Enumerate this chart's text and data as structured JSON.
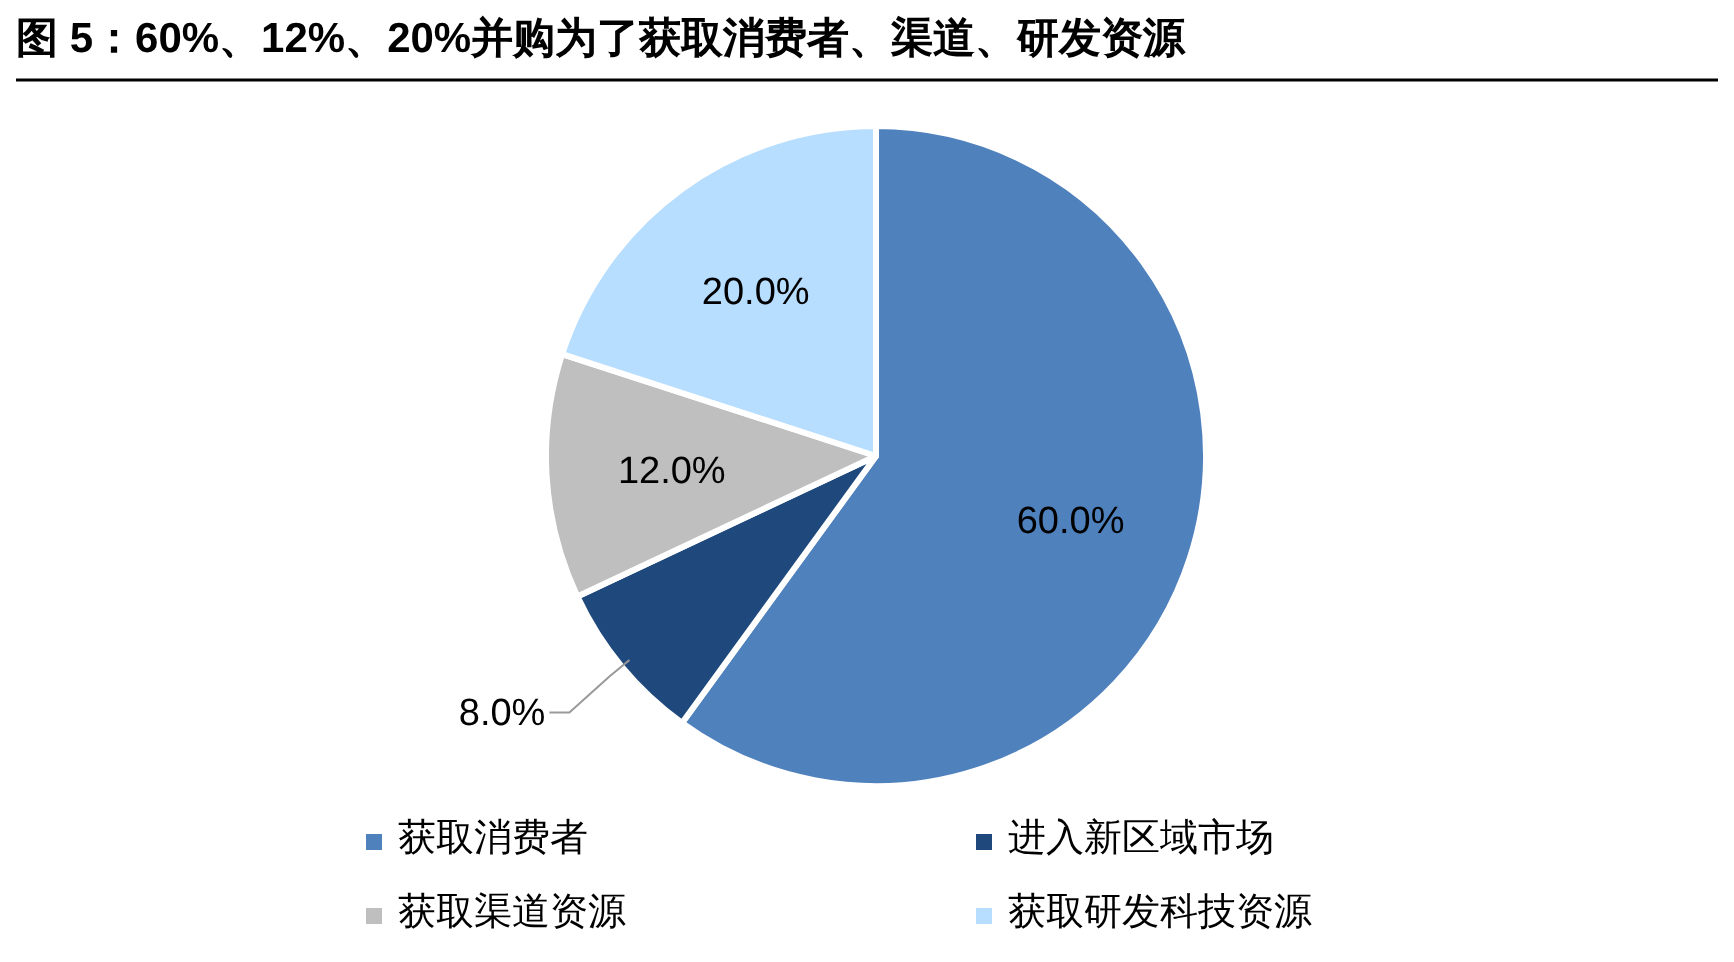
{
  "chart_data": {
    "type": "pie",
    "title": "图 5：60%、12%、20%并购为了获取消费者、渠道、研发资源",
    "categories": [
      "获取消费者",
      "进入新区域市场",
      "获取渠道资源",
      "获取研发科技资源"
    ],
    "values": [
      60,
      8,
      12,
      20
    ],
    "colors": [
      "#4f81bd",
      "#1f497d",
      "#bfbfbf",
      "#b7ddff"
    ],
    "value_labels": [
      "60.0%",
      "8.0%",
      "12.0%",
      "20.0%"
    ],
    "legend": "bottom"
  }
}
